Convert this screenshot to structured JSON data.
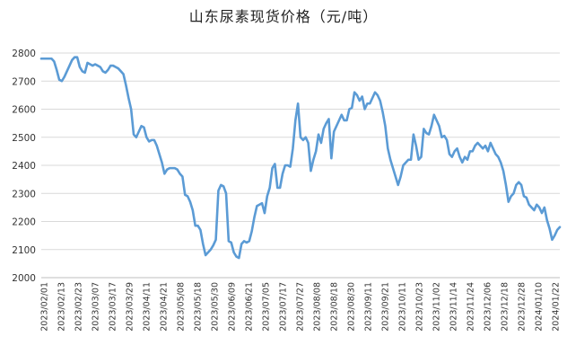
{
  "chart_data": {
    "type": "line",
    "title": "山东尿素现货价格（元/吨）",
    "xlabel": "",
    "ylabel": "",
    "ylim": [
      2000,
      2800
    ],
    "yticks": [
      2000,
      2100,
      2200,
      2300,
      2400,
      2500,
      2600,
      2700,
      2800
    ],
    "grid": true,
    "legend": "none",
    "colors": {
      "series": "#5b9bd5",
      "grid": "#d9d9d9",
      "text": "#333333"
    },
    "x_tick_labels": [
      "2023/02/01",
      "2023/02/13",
      "2023/02/23",
      "2023/03/07",
      "2023/03/17",
      "2023/03/29",
      "2023/04/11",
      "2023/04/21",
      "2023/05/08",
      "2023/05/18",
      "2023/05/30",
      "2023/06/09",
      "2023/06/21",
      "2023/07/05",
      "2023/07/17",
      "2023/07/27",
      "2023/08/08",
      "2023/08/18",
      "2023/08/30",
      "2023/09/11",
      "2023/09/21",
      "2023/10/11",
      "2023/10/23",
      "2023/11/02",
      "2023/11/14",
      "2023/11/24",
      "2023/12/06",
      "2023/12/18",
      "2023/12/28",
      "2024/01/10",
      "2024/01/22"
    ],
    "series": [
      {
        "name": "",
        "values": [
          2780,
          2780,
          2780,
          2780,
          2780,
          2770,
          2740,
          2705,
          2700,
          2715,
          2735,
          2755,
          2775,
          2785,
          2785,
          2750,
          2735,
          2730,
          2765,
          2760,
          2755,
          2760,
          2755,
          2750,
          2735,
          2730,
          2740,
          2755,
          2755,
          2750,
          2745,
          2735,
          2725,
          2685,
          2640,
          2600,
          2510,
          2500,
          2520,
          2540,
          2535,
          2500,
          2485,
          2490,
          2490,
          2470,
          2440,
          2410,
          2370,
          2385,
          2390,
          2390,
          2390,
          2385,
          2370,
          2360,
          2295,
          2290,
          2270,
          2240,
          2185,
          2185,
          2170,
          2120,
          2080,
          2090,
          2100,
          2115,
          2135,
          2310,
          2330,
          2325,
          2300,
          2130,
          2125,
          2090,
          2075,
          2070,
          2120,
          2130,
          2125,
          2130,
          2165,
          2215,
          2255,
          2260,
          2265,
          2230,
          2290,
          2320,
          2390,
          2405,
          2320,
          2320,
          2370,
          2400,
          2400,
          2395,
          2460,
          2560,
          2620,
          2500,
          2490,
          2500,
          2480,
          2380,
          2420,
          2450,
          2510,
          2480,
          2530,
          2550,
          2565,
          2425,
          2520,
          2540,
          2560,
          2580,
          2560,
          2560,
          2600,
          2605,
          2660,
          2650,
          2630,
          2645,
          2600,
          2620,
          2620,
          2640,
          2660,
          2650,
          2630,
          2590,
          2540,
          2460,
          2420,
          2390,
          2360,
          2330,
          2360,
          2400,
          2410,
          2420,
          2420,
          2510,
          2470,
          2420,
          2430,
          2530,
          2515,
          2510,
          2540,
          2580,
          2560,
          2540,
          2500,
          2505,
          2490,
          2440,
          2430,
          2450,
          2460,
          2430,
          2410,
          2430,
          2420,
          2450,
          2450,
          2470,
          2480,
          2470,
          2460,
          2470,
          2450,
          2480,
          2460,
          2440,
          2430,
          2410,
          2380,
          2330,
          2270,
          2290,
          2300,
          2330,
          2340,
          2330,
          2290,
          2285,
          2260,
          2250,
          2240,
          2260,
          2250,
          2230,
          2250,
          2205,
          2175,
          2135,
          2150,
          2170,
          2180
        ]
      }
    ]
  }
}
